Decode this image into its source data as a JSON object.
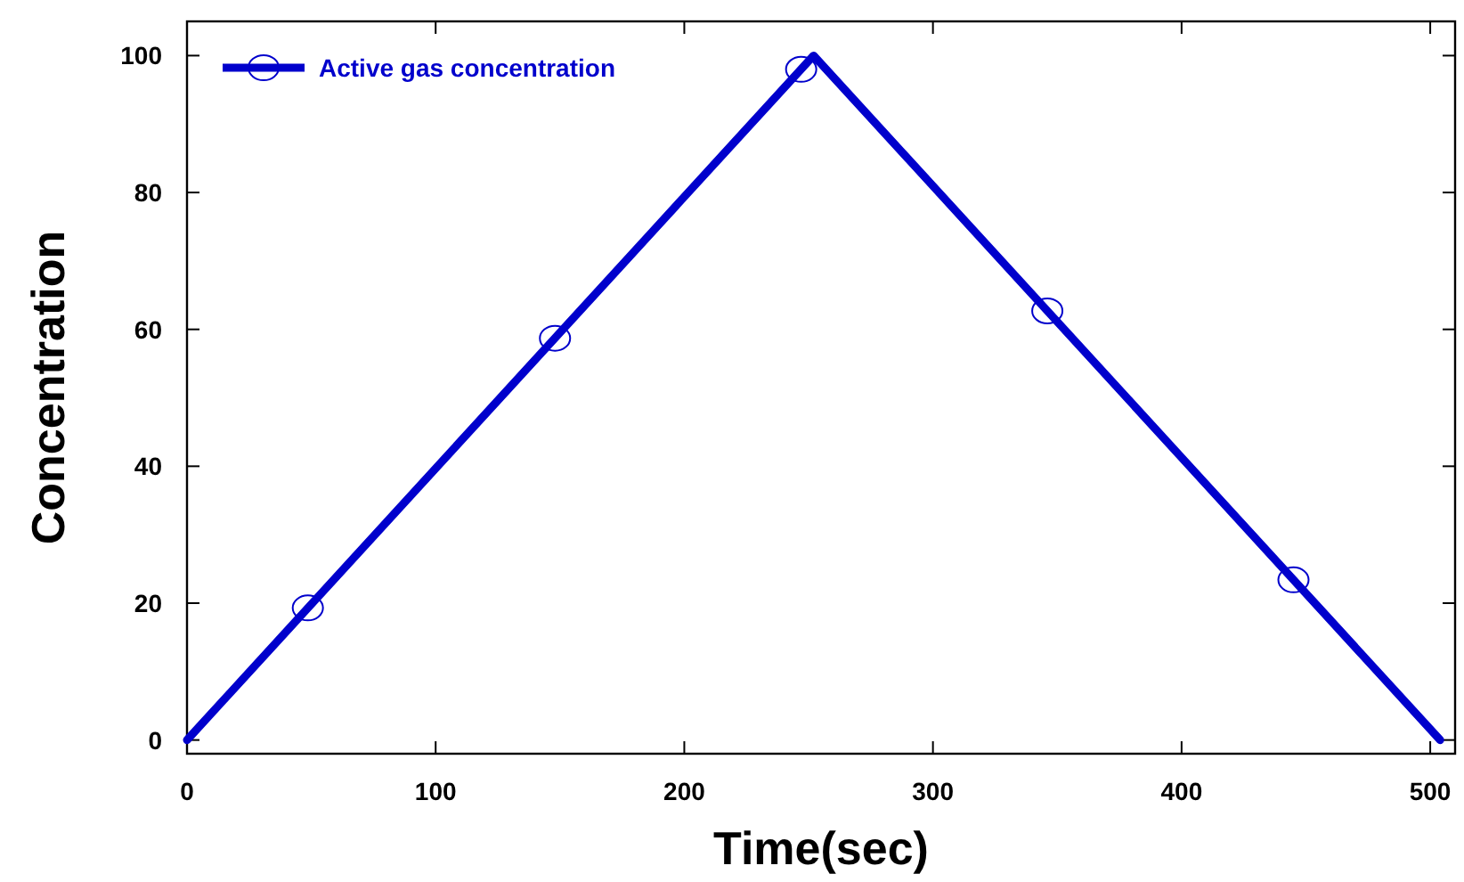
{
  "chart_data": {
    "type": "line",
    "xlabel": "Time(sec)",
    "ylabel": "Concentration",
    "xlim": [
      0,
      510
    ],
    "xticks": [
      0,
      100,
      200,
      300,
      400,
      500
    ],
    "ylim": [
      -2,
      105
    ],
    "yticks": [
      0,
      20,
      40,
      60,
      80,
      100
    ],
    "grid": false,
    "legend": "top left",
    "line_style": "solid",
    "series": [
      {
        "color": "#0000cc",
        "marker": "none",
        "x": [
          0,
          252,
          504
        ],
        "values": [
          0,
          100,
          0
        ]
      },
      {
        "type": "scatter",
        "name": "Active gas concentration",
        "color": "#0000cc",
        "marker": "circle",
        "x": [
          48.6,
          148,
          247,
          346,
          445
        ],
        "values": [
          19.3,
          58.7,
          98,
          62.7,
          23.4
        ]
      }
    ]
  }
}
